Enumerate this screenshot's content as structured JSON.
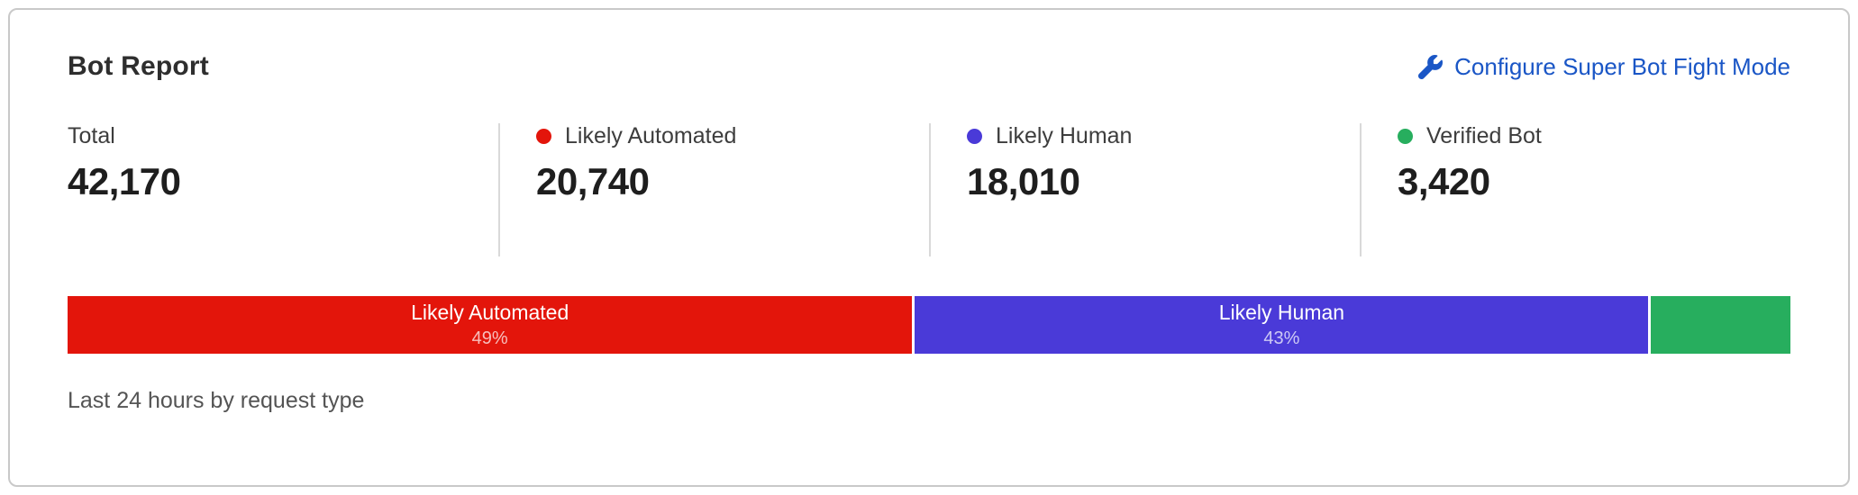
{
  "card": {
    "title": "Bot Report",
    "configure_link": {
      "label": "Configure Super Bot Fight Mode",
      "icon": "wrench-icon",
      "color": "#1a56c6"
    },
    "stats": [
      {
        "label": "Total",
        "value": "42,170",
        "dot_color": null
      },
      {
        "label": "Likely Automated",
        "value": "20,740",
        "dot_color": "#e3150b"
      },
      {
        "label": "Likely Human",
        "value": "18,010",
        "dot_color": "#4a3ad8"
      },
      {
        "label": "Verified Bot",
        "value": "3,420",
        "dot_color": "#27ae5e"
      }
    ],
    "footer": "Last 24 hours by request type"
  },
  "chart_data": {
    "type": "bar",
    "variant": "stacked-horizontal-proportion",
    "title": "Bot Report",
    "subtitle": "Last 24 hours by request type",
    "total": 42170,
    "legend_position": "top",
    "segments": [
      {
        "label": "Likely Automated",
        "value": 20740,
        "percent": 49.18,
        "pct_label": "49%",
        "color": "#e3150b",
        "label_shown": true
      },
      {
        "label": "Likely Human",
        "value": 18010,
        "percent": 42.71,
        "pct_label": "43%",
        "color": "#4a3ad8",
        "label_shown": true
      },
      {
        "label": "Verified Bot",
        "value": 3420,
        "percent": 8.11,
        "pct_label": "",
        "color": "#27ae5e",
        "label_shown": false
      }
    ]
  }
}
